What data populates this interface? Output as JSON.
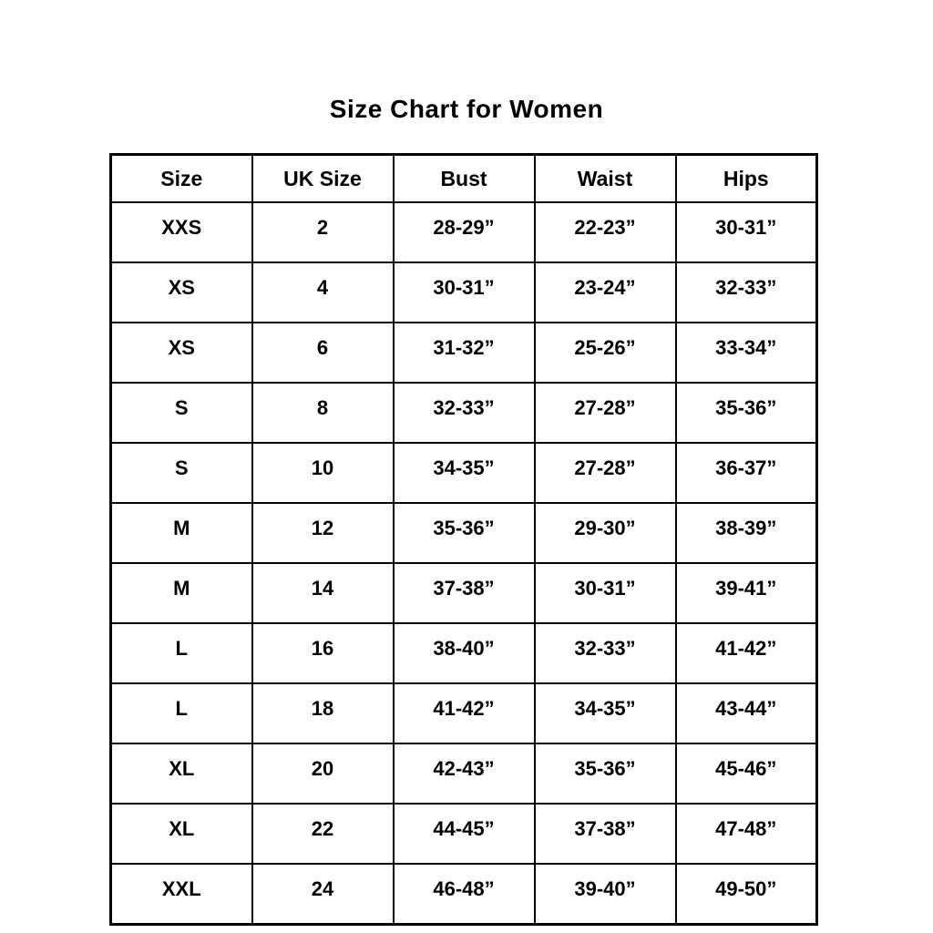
{
  "page": {
    "background_color": "#ffffff",
    "text_color": "#000000"
  },
  "chart_data": {
    "type": "table",
    "title": "Size Chart for Women",
    "columns": [
      "Size",
      "UK Size",
      "Bust",
      "Waist",
      "Hips"
    ],
    "rows": [
      [
        "XXS",
        "2",
        "28-29”",
        "22-23”",
        "30-31”"
      ],
      [
        "XS",
        "4",
        "30-31”",
        "23-24”",
        "32-33”"
      ],
      [
        "XS",
        "6",
        "31-32”",
        "25-26”",
        "33-34”"
      ],
      [
        "S",
        "8",
        "32-33”",
        "27-28”",
        "35-36”"
      ],
      [
        "S",
        "10",
        "34-35”",
        "27-28”",
        "36-37”"
      ],
      [
        "M",
        "12",
        "35-36”",
        "29-30”",
        "38-39”"
      ],
      [
        "M",
        "14",
        "37-38”",
        "30-31”",
        "39-41”"
      ],
      [
        "L",
        "16",
        "38-40”",
        "32-33”",
        "41-42”"
      ],
      [
        "L",
        "18",
        "41-42”",
        "34-35”",
        "43-44”"
      ],
      [
        "XL",
        "20",
        "42-43”",
        "35-36”",
        "45-46”"
      ],
      [
        "XL",
        "22",
        "44-45”",
        "37-38”",
        "47-48”"
      ],
      [
        "XXL",
        "24",
        "46-48”",
        "39-40”",
        "49-50”"
      ]
    ]
  }
}
